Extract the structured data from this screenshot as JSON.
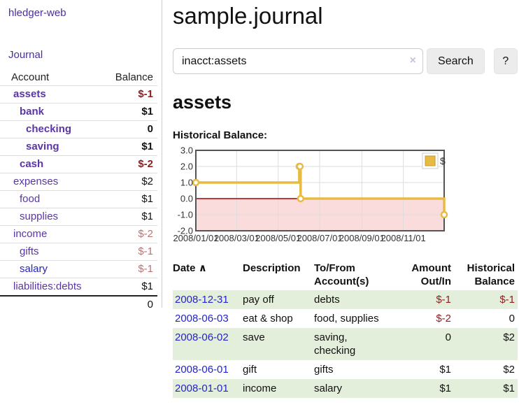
{
  "sidebar": {
    "app_title": "hledger-web",
    "journal_label": "Journal",
    "accounts_table": {
      "account_header": "Account",
      "balance_header": "Balance",
      "rows": [
        {
          "name": "assets",
          "depth": 0,
          "bold": true,
          "link_color": "purple",
          "balance": "$-1",
          "balance_style": "neg-strong"
        },
        {
          "name": "bank",
          "depth": 1,
          "bold": true,
          "link_color": "purple",
          "balance": "$1",
          "balance_style": "pos"
        },
        {
          "name": "checking",
          "depth": 2,
          "bold": true,
          "link_color": "purple",
          "balance": "0",
          "balance_style": "pos"
        },
        {
          "name": "saving",
          "depth": 2,
          "bold": true,
          "link_color": "purple",
          "balance": "$1",
          "balance_style": "pos"
        },
        {
          "name": "cash",
          "depth": 1,
          "bold": true,
          "link_color": "purple",
          "balance": "$-2",
          "balance_style": "neg-strong"
        },
        {
          "name": "expenses",
          "depth": 0,
          "bold": false,
          "link_color": "purple",
          "balance": "$2",
          "balance_style": "pos"
        },
        {
          "name": "food",
          "depth": 1,
          "bold": false,
          "link_color": "purple",
          "balance": "$1",
          "balance_style": "pos"
        },
        {
          "name": "supplies",
          "depth": 1,
          "bold": false,
          "link_color": "purple",
          "balance": "$1",
          "balance_style": "pos"
        },
        {
          "name": "income",
          "depth": 0,
          "bold": false,
          "link_color": "purple",
          "balance": "$-2",
          "balance_style": "neg-soft"
        },
        {
          "name": "gifts",
          "depth": 1,
          "bold": false,
          "link_color": "purple",
          "balance": "$-1",
          "balance_style": "neg-soft"
        },
        {
          "name": "salary",
          "depth": 1,
          "bold": false,
          "link_color": "blue",
          "balance": "$-1",
          "balance_style": "neg-soft"
        },
        {
          "name": "liabilities:debts",
          "depth": 0,
          "bold": false,
          "link_color": "purple",
          "balance": "$1",
          "balance_style": "pos"
        }
      ],
      "total": "0"
    }
  },
  "main": {
    "title": "sample.journal",
    "search": {
      "value": "inacct:assets",
      "clear_icon": "×",
      "button_label": "Search",
      "help_label": "?"
    },
    "account_heading": "assets",
    "chart_label": "Historical Balance:"
  },
  "chart_data": {
    "type": "line",
    "title": "Historical Balance:",
    "legend": [
      {
        "label": "$",
        "color": "#e7bb43"
      }
    ],
    "x_range": [
      "2008-01-01",
      "2008-12-31"
    ],
    "x_ticks": [
      "2008/01/01",
      "2008/03/01",
      "2008/05/01",
      "2008/07/01",
      "2008/09/01",
      "2008/11/01"
    ],
    "y_ticks": [
      "3.0",
      "2.0",
      "1.0",
      "0.0",
      "-1.0",
      "-2.0"
    ],
    "ylim": [
      -2,
      3
    ],
    "grid": true,
    "legend_position": "top-right",
    "negative_region_color": "#fbdcdc",
    "zero_line_color": "#a40000",
    "series": [
      {
        "name": "$",
        "color": "#e7bb43",
        "step": true,
        "points": [
          {
            "date": "2008-01-01",
            "value": 1
          },
          {
            "date": "2008-06-01",
            "value": 2
          },
          {
            "date": "2008-06-02",
            "value": 2
          },
          {
            "date": "2008-06-03",
            "value": 0
          },
          {
            "date": "2008-12-31",
            "value": -1
          }
        ]
      }
    ]
  },
  "register_table": {
    "headers": {
      "date": "Date",
      "sort_asc_icon": "∧",
      "description": "Description",
      "account": "To/From\nAccount(s)",
      "amount": "Amount\nOut/In",
      "balance": "Historical\nBalance"
    },
    "rows": [
      {
        "date": "2008-12-31",
        "description": "pay off",
        "account": "debts",
        "amount": "$-1",
        "amount_neg": true,
        "balance": "$-1",
        "balance_neg": true
      },
      {
        "date": "2008-06-03",
        "description": "eat & shop",
        "account": "food, supplies",
        "amount": "$-2",
        "amount_neg": true,
        "balance": "0",
        "balance_neg": false
      },
      {
        "date": "2008-06-02",
        "description": "save",
        "account": "saving, checking",
        "amount": "0",
        "amount_neg": false,
        "balance": "$2",
        "balance_neg": false
      },
      {
        "date": "2008-06-01",
        "description": "gift",
        "account": "gifts",
        "amount": "$1",
        "amount_neg": false,
        "balance": "$2",
        "balance_neg": false
      },
      {
        "date": "2008-01-01",
        "description": "income",
        "account": "salary",
        "amount": "$1",
        "amount_neg": false,
        "balance": "$1",
        "balance_neg": false
      }
    ]
  }
}
